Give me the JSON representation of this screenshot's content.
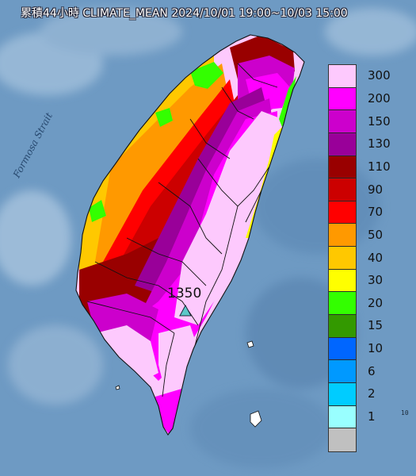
{
  "title": "累積44小時 CLIMATE_MEAN 2024/10/01 19:00~10/03 15:00",
  "map": {
    "sea_label": "Formosa Strait",
    "peak_value": "1350",
    "peak_marker_color": "#5cc8c8"
  },
  "legend": {
    "levels": [
      {
        "label": "300",
        "color": "#fdc9fd"
      },
      {
        "label": "200",
        "color": "#ff00ff"
      },
      {
        "label": "150",
        "color": "#cc00cc"
      },
      {
        "label": "130",
        "color": "#990099"
      },
      {
        "label": "110",
        "color": "#990000"
      },
      {
        "label": "90",
        "color": "#cc0000"
      },
      {
        "label": "70",
        "color": "#ff0000"
      },
      {
        "label": "50",
        "color": "#ff9900"
      },
      {
        "label": "40",
        "color": "#ffc800"
      },
      {
        "label": "30",
        "color": "#ffff00"
      },
      {
        "label": "20",
        "color": "#33ff00"
      },
      {
        "label": "15",
        "color": "#339900"
      },
      {
        "label": "10",
        "color": "#0066ff"
      },
      {
        "label": "6",
        "color": "#0099ff"
      },
      {
        "label": "2",
        "color": "#00ccff"
      },
      {
        "label": "1",
        "color": "#99ffff"
      },
      {
        "label": "",
        "color": "#c0c0c0"
      }
    ]
  },
  "corner_mark": "10"
}
